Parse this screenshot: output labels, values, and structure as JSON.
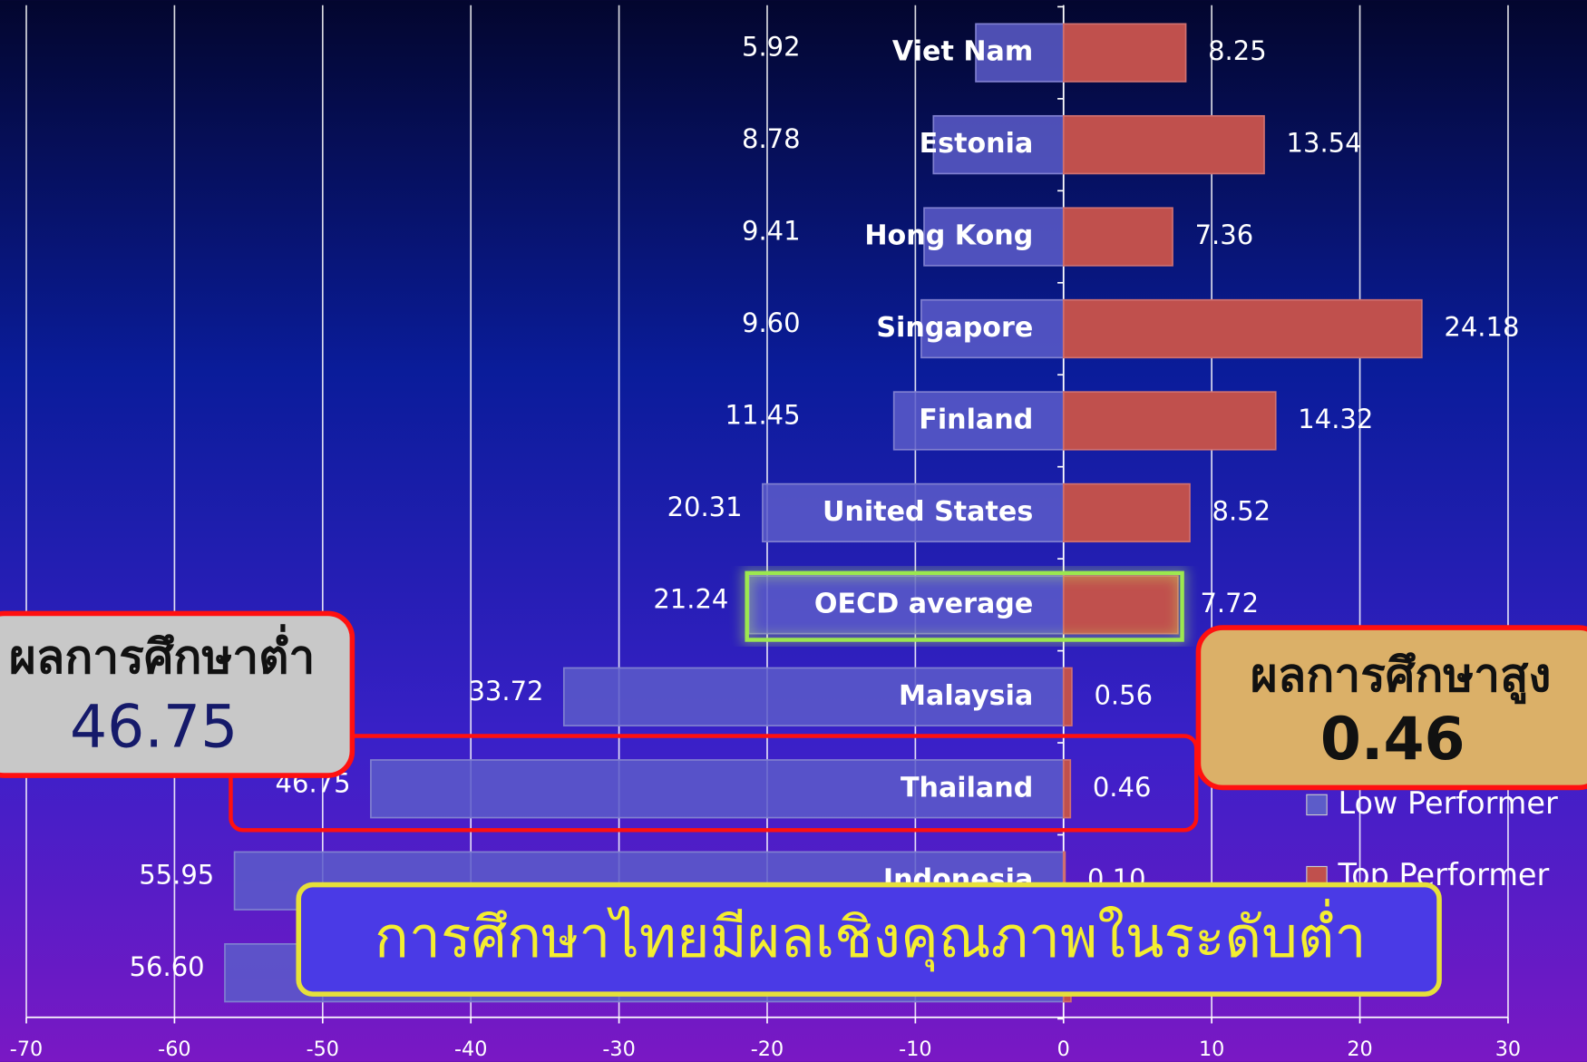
{
  "chart_data": {
    "type": "diverging-bar",
    "categories": [
      "Viet Nam",
      "Estonia",
      "Hong Kong",
      "Singapore",
      "Finland",
      "United States",
      "OECD average",
      "Malaysia",
      "Thailand",
      "Indonesia",
      null
    ],
    "series": [
      {
        "name": "Low Performer",
        "color": "#5c5cc9",
        "values": [
          -5.92,
          -8.78,
          -9.41,
          -9.6,
          -11.45,
          -20.31,
          -21.24,
          -33.72,
          -46.75,
          -55.95,
          -56.6
        ],
        "value_labels": [
          "5.92",
          "8.78",
          "9.41",
          "9.60",
          "11.45",
          "20.31",
          "21.24",
          "33.72",
          "46.75",
          "55.95",
          "56.60"
        ]
      },
      {
        "name": "Top Performer",
        "color": "#c0504d",
        "values": [
          8.25,
          13.54,
          7.36,
          24.18,
          14.32,
          8.52,
          7.72,
          0.56,
          0.46,
          0.1,
          0.5
        ],
        "value_labels": [
          "8.25",
          "13.54",
          "7.36",
          "24.18",
          "14.32",
          "8.52",
          "7.72",
          "0.56",
          "0.46",
          "0.10",
          null
        ]
      }
    ],
    "xlim": [
      -70,
      30
    ],
    "xticks": [
      -70,
      -60,
      -50,
      -40,
      -30,
      -20,
      -10,
      0,
      10,
      20,
      30
    ],
    "grid": true,
    "callouts": {
      "low": {
        "title": "ผลการศึกษาต่ำ",
        "value": "46.75"
      },
      "high": {
        "title": "ผลการศึกษาสูง",
        "value": "0.46"
      }
    },
    "banner": "การศึกษาไทยมีผลเชิงคุณภาพในระดับต่ำ"
  }
}
